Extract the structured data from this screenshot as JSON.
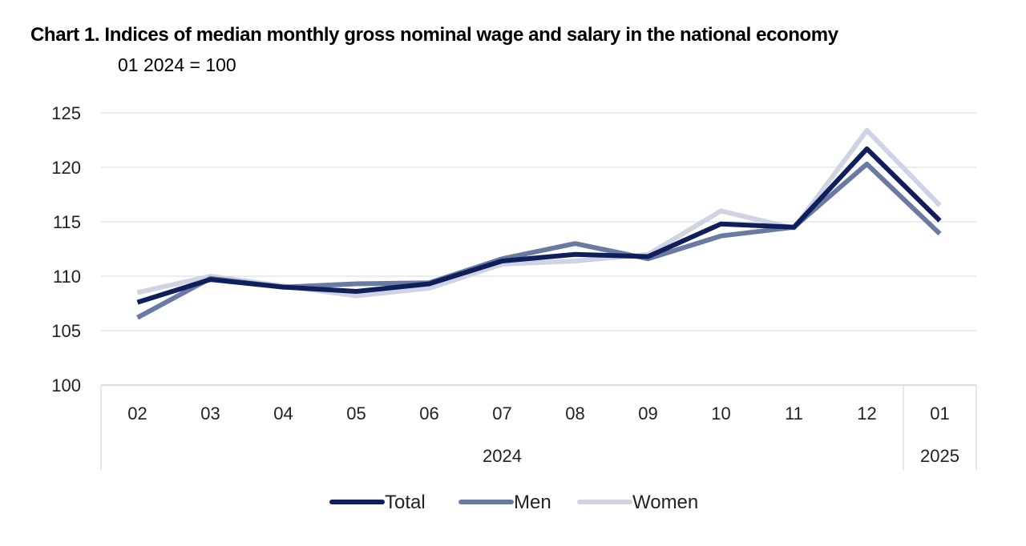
{
  "chart_data": {
    "type": "line",
    "title": "Chart 1. Indices of median monthly gross nominal wage and salary in the national economy",
    "subtitle": "01 2024 = 100",
    "categories": [
      "02",
      "03",
      "04",
      "05",
      "06",
      "07",
      "08",
      "09",
      "10",
      "11",
      "12",
      "01"
    ],
    "year_groups": [
      {
        "label": "2024",
        "count": 11
      },
      {
        "label": "2025",
        "count": 1
      }
    ],
    "ylim": [
      100,
      125
    ],
    "yticks": [
      100,
      105,
      110,
      115,
      120,
      125
    ],
    "grid": true,
    "legend_position": "bottom",
    "series": [
      {
        "name": "Total",
        "color": "#0f1f5c",
        "values": [
          107.6,
          109.7,
          109.0,
          108.6,
          109.3,
          111.4,
          112.0,
          111.8,
          114.8,
          114.5,
          121.7,
          115.1
        ]
      },
      {
        "name": "Men",
        "color": "#6b7aa3",
        "values": [
          106.2,
          109.8,
          109.0,
          109.3,
          109.4,
          111.6,
          113.0,
          111.6,
          113.7,
          114.5,
          120.3,
          113.9
        ]
      },
      {
        "name": "Women",
        "color": "#cfd3e3",
        "values": [
          108.5,
          110.0,
          109.1,
          108.2,
          108.9,
          111.1,
          111.4,
          112.0,
          116.0,
          114.4,
          123.4,
          116.5
        ]
      }
    ]
  }
}
